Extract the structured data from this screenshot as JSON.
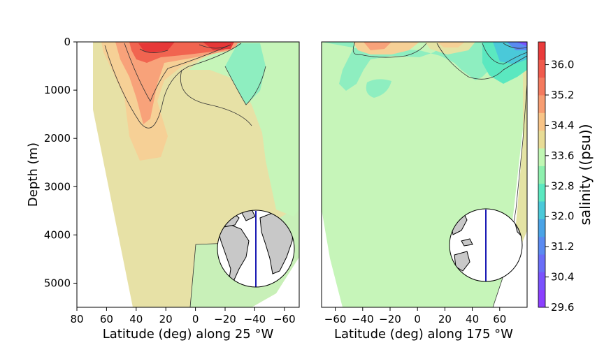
{
  "chart_data": [
    {
      "type": "heatmap",
      "panel": "left",
      "xlabel": "Latitude (deg) along 25 °W",
      "ylabel": "Depth (m)",
      "xlim": [
        80,
        -70
      ],
      "ylim": [
        5500,
        0
      ],
      "x_ticks": [
        80,
        60,
        40,
        20,
        0,
        -20,
        -40,
        -60
      ],
      "y_ticks": [
        0,
        1000,
        2000,
        3000,
        4000,
        5000
      ],
      "field": {
        "variable": "salinity",
        "surface_max_psu": 36.8,
        "subsurface_core_psu": 35.2,
        "deep_psu": 34.9,
        "bottom_south_psu": 34.7,
        "southern_ocean_psu": 34.2
      },
      "inset_map": {
        "section_longitude": "25 °W",
        "line_color": "#1a1ab4"
      }
    },
    {
      "type": "heatmap",
      "panel": "right",
      "xlabel": "Latitude (deg) along 175 °W",
      "ylabel": "",
      "xlim": [
        -70,
        80
      ],
      "ylim": [
        5500,
        0
      ],
      "x_ticks": [
        -60,
        -40,
        -20,
        0,
        20,
        40,
        60
      ],
      "field": {
        "variable": "salinity",
        "surface_max_psu": 35.6,
        "deep_psu": 34.6,
        "north_surface_min_psu": 32.0
      },
      "inset_map": {
        "section_longitude": "175 °W",
        "line_color": "#1a1ab4"
      }
    }
  ],
  "colorbar": {
    "label": "salinity ((psu))",
    "ticks": [
      "29.6",
      "30.4",
      "31.2",
      "32.0",
      "32.8",
      "33.6",
      "34.4",
      "35.2",
      "36.0"
    ],
    "min": 29.6,
    "max": 36.6,
    "colors": [
      "#8b3fff",
      "#7a52fd",
      "#6a6ef8",
      "#5a8af1",
      "#4aa3e6",
      "#4ac9d9",
      "#5be8c0",
      "#8ef0ae",
      "#c0f7b3",
      "#e8dc96",
      "#f8c487",
      "#f79d72",
      "#f47a5e",
      "#f05a4c",
      "#ea3b3b"
    ]
  }
}
